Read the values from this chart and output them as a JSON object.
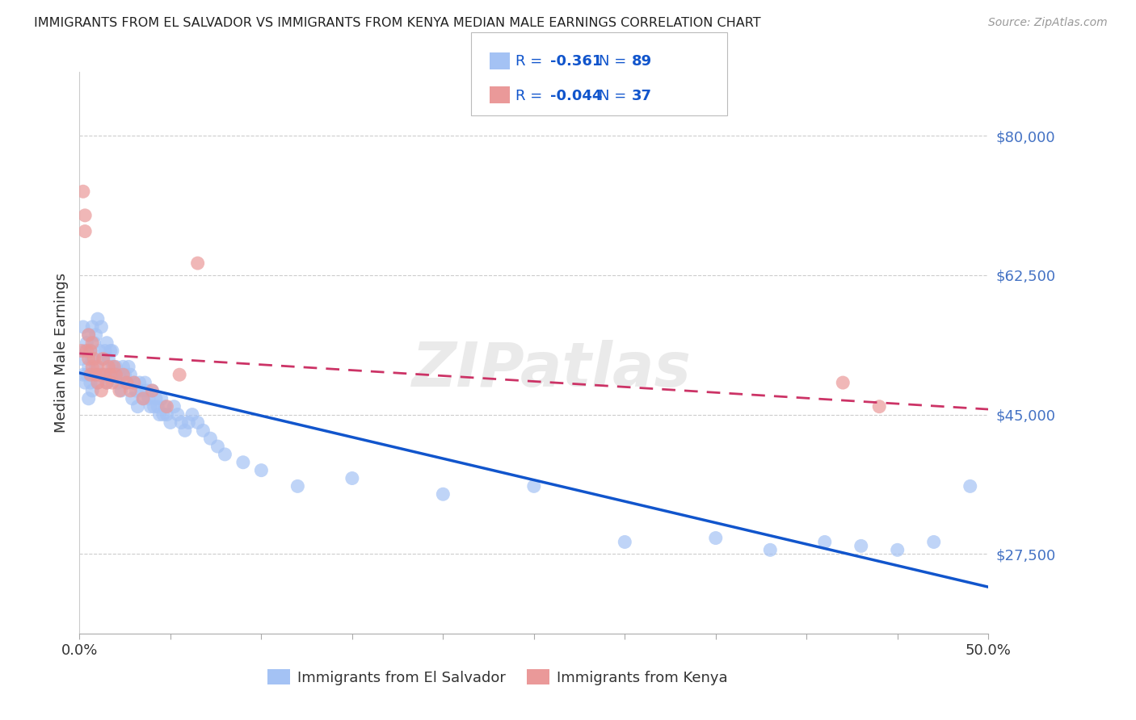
{
  "title": "IMMIGRANTS FROM EL SALVADOR VS IMMIGRANTS FROM KENYA MEDIAN MALE EARNINGS CORRELATION CHART",
  "source": "Source: ZipAtlas.com",
  "ylabel": "Median Male Earnings",
  "yticks": [
    27500,
    45000,
    62500,
    80000
  ],
  "ytick_labels": [
    "$27,500",
    "$45,000",
    "$62,500",
    "$80,000"
  ],
  "ylim": [
    17500,
    88000
  ],
  "xlim": [
    0.0,
    0.5
  ],
  "watermark": "ZIPatlas",
  "legend_blue_r": "-0.361",
  "legend_blue_n": "89",
  "legend_pink_r": "-0.044",
  "legend_pink_n": "37",
  "legend_blue_label": "Immigrants from El Salvador",
  "legend_pink_label": "Immigrants from Kenya",
  "blue_color": "#a4c2f4",
  "pink_color": "#ea9999",
  "blue_line_color": "#1155cc",
  "pink_line_color": "#cc3366",
  "legend_text_color": "#1155cc",
  "title_color": "#222222",
  "source_color": "#999999",
  "ytick_color": "#4472c4",
  "grid_color": "#cccccc",
  "blue_x": [
    0.001,
    0.002,
    0.002,
    0.003,
    0.003,
    0.004,
    0.004,
    0.005,
    0.005,
    0.005,
    0.006,
    0.006,
    0.007,
    0.007,
    0.007,
    0.008,
    0.008,
    0.009,
    0.009,
    0.01,
    0.01,
    0.011,
    0.012,
    0.013,
    0.013,
    0.014,
    0.015,
    0.015,
    0.016,
    0.016,
    0.017,
    0.018,
    0.018,
    0.019,
    0.02,
    0.021,
    0.022,
    0.023,
    0.024,
    0.025,
    0.026,
    0.027,
    0.028,
    0.029,
    0.03,
    0.031,
    0.032,
    0.033,
    0.034,
    0.035,
    0.036,
    0.037,
    0.038,
    0.039,
    0.04,
    0.041,
    0.042,
    0.043,
    0.044,
    0.045,
    0.046,
    0.047,
    0.048,
    0.05,
    0.052,
    0.054,
    0.056,
    0.058,
    0.06,
    0.062,
    0.065,
    0.068,
    0.072,
    0.076,
    0.08,
    0.09,
    0.1,
    0.12,
    0.15,
    0.2,
    0.25,
    0.3,
    0.35,
    0.38,
    0.41,
    0.43,
    0.45,
    0.47,
    0.49
  ],
  "blue_y": [
    52000,
    56000,
    50000,
    53000,
    49000,
    54000,
    50000,
    55000,
    51000,
    47000,
    53000,
    49000,
    56000,
    52000,
    48000,
    54000,
    50000,
    55000,
    51000,
    57000,
    49000,
    53000,
    56000,
    52000,
    50000,
    53000,
    54000,
    49000,
    52000,
    50000,
    53000,
    51000,
    53000,
    50000,
    51000,
    49000,
    50000,
    48000,
    51000,
    50000,
    49000,
    51000,
    50000,
    47000,
    49000,
    48000,
    46000,
    49000,
    48000,
    47000,
    49000,
    48000,
    47000,
    46000,
    48000,
    46000,
    47000,
    46000,
    45000,
    47000,
    45000,
    46000,
    45000,
    44000,
    46000,
    45000,
    44000,
    43000,
    44000,
    45000,
    44000,
    43000,
    42000,
    41000,
    40000,
    39000,
    38000,
    36000,
    37000,
    35000,
    36000,
    29000,
    29500,
    28000,
    29000,
    28500,
    28000,
    29000,
    36000
  ],
  "pink_x": [
    0.001,
    0.002,
    0.003,
    0.003,
    0.004,
    0.005,
    0.005,
    0.006,
    0.006,
    0.007,
    0.007,
    0.008,
    0.009,
    0.01,
    0.01,
    0.011,
    0.012,
    0.013,
    0.014,
    0.015,
    0.016,
    0.017,
    0.018,
    0.019,
    0.02,
    0.022,
    0.024,
    0.026,
    0.028,
    0.03,
    0.035,
    0.04,
    0.048,
    0.055,
    0.065,
    0.42,
    0.44
  ],
  "pink_y": [
    53000,
    73000,
    70000,
    68000,
    53000,
    55000,
    52000,
    53000,
    50000,
    54000,
    51000,
    52000,
    50000,
    51000,
    49000,
    50000,
    48000,
    52000,
    50000,
    49000,
    51000,
    50000,
    49000,
    51000,
    50000,
    48000,
    50000,
    49000,
    48000,
    49000,
    47000,
    48000,
    46000,
    50000,
    64000,
    49000,
    46000
  ]
}
